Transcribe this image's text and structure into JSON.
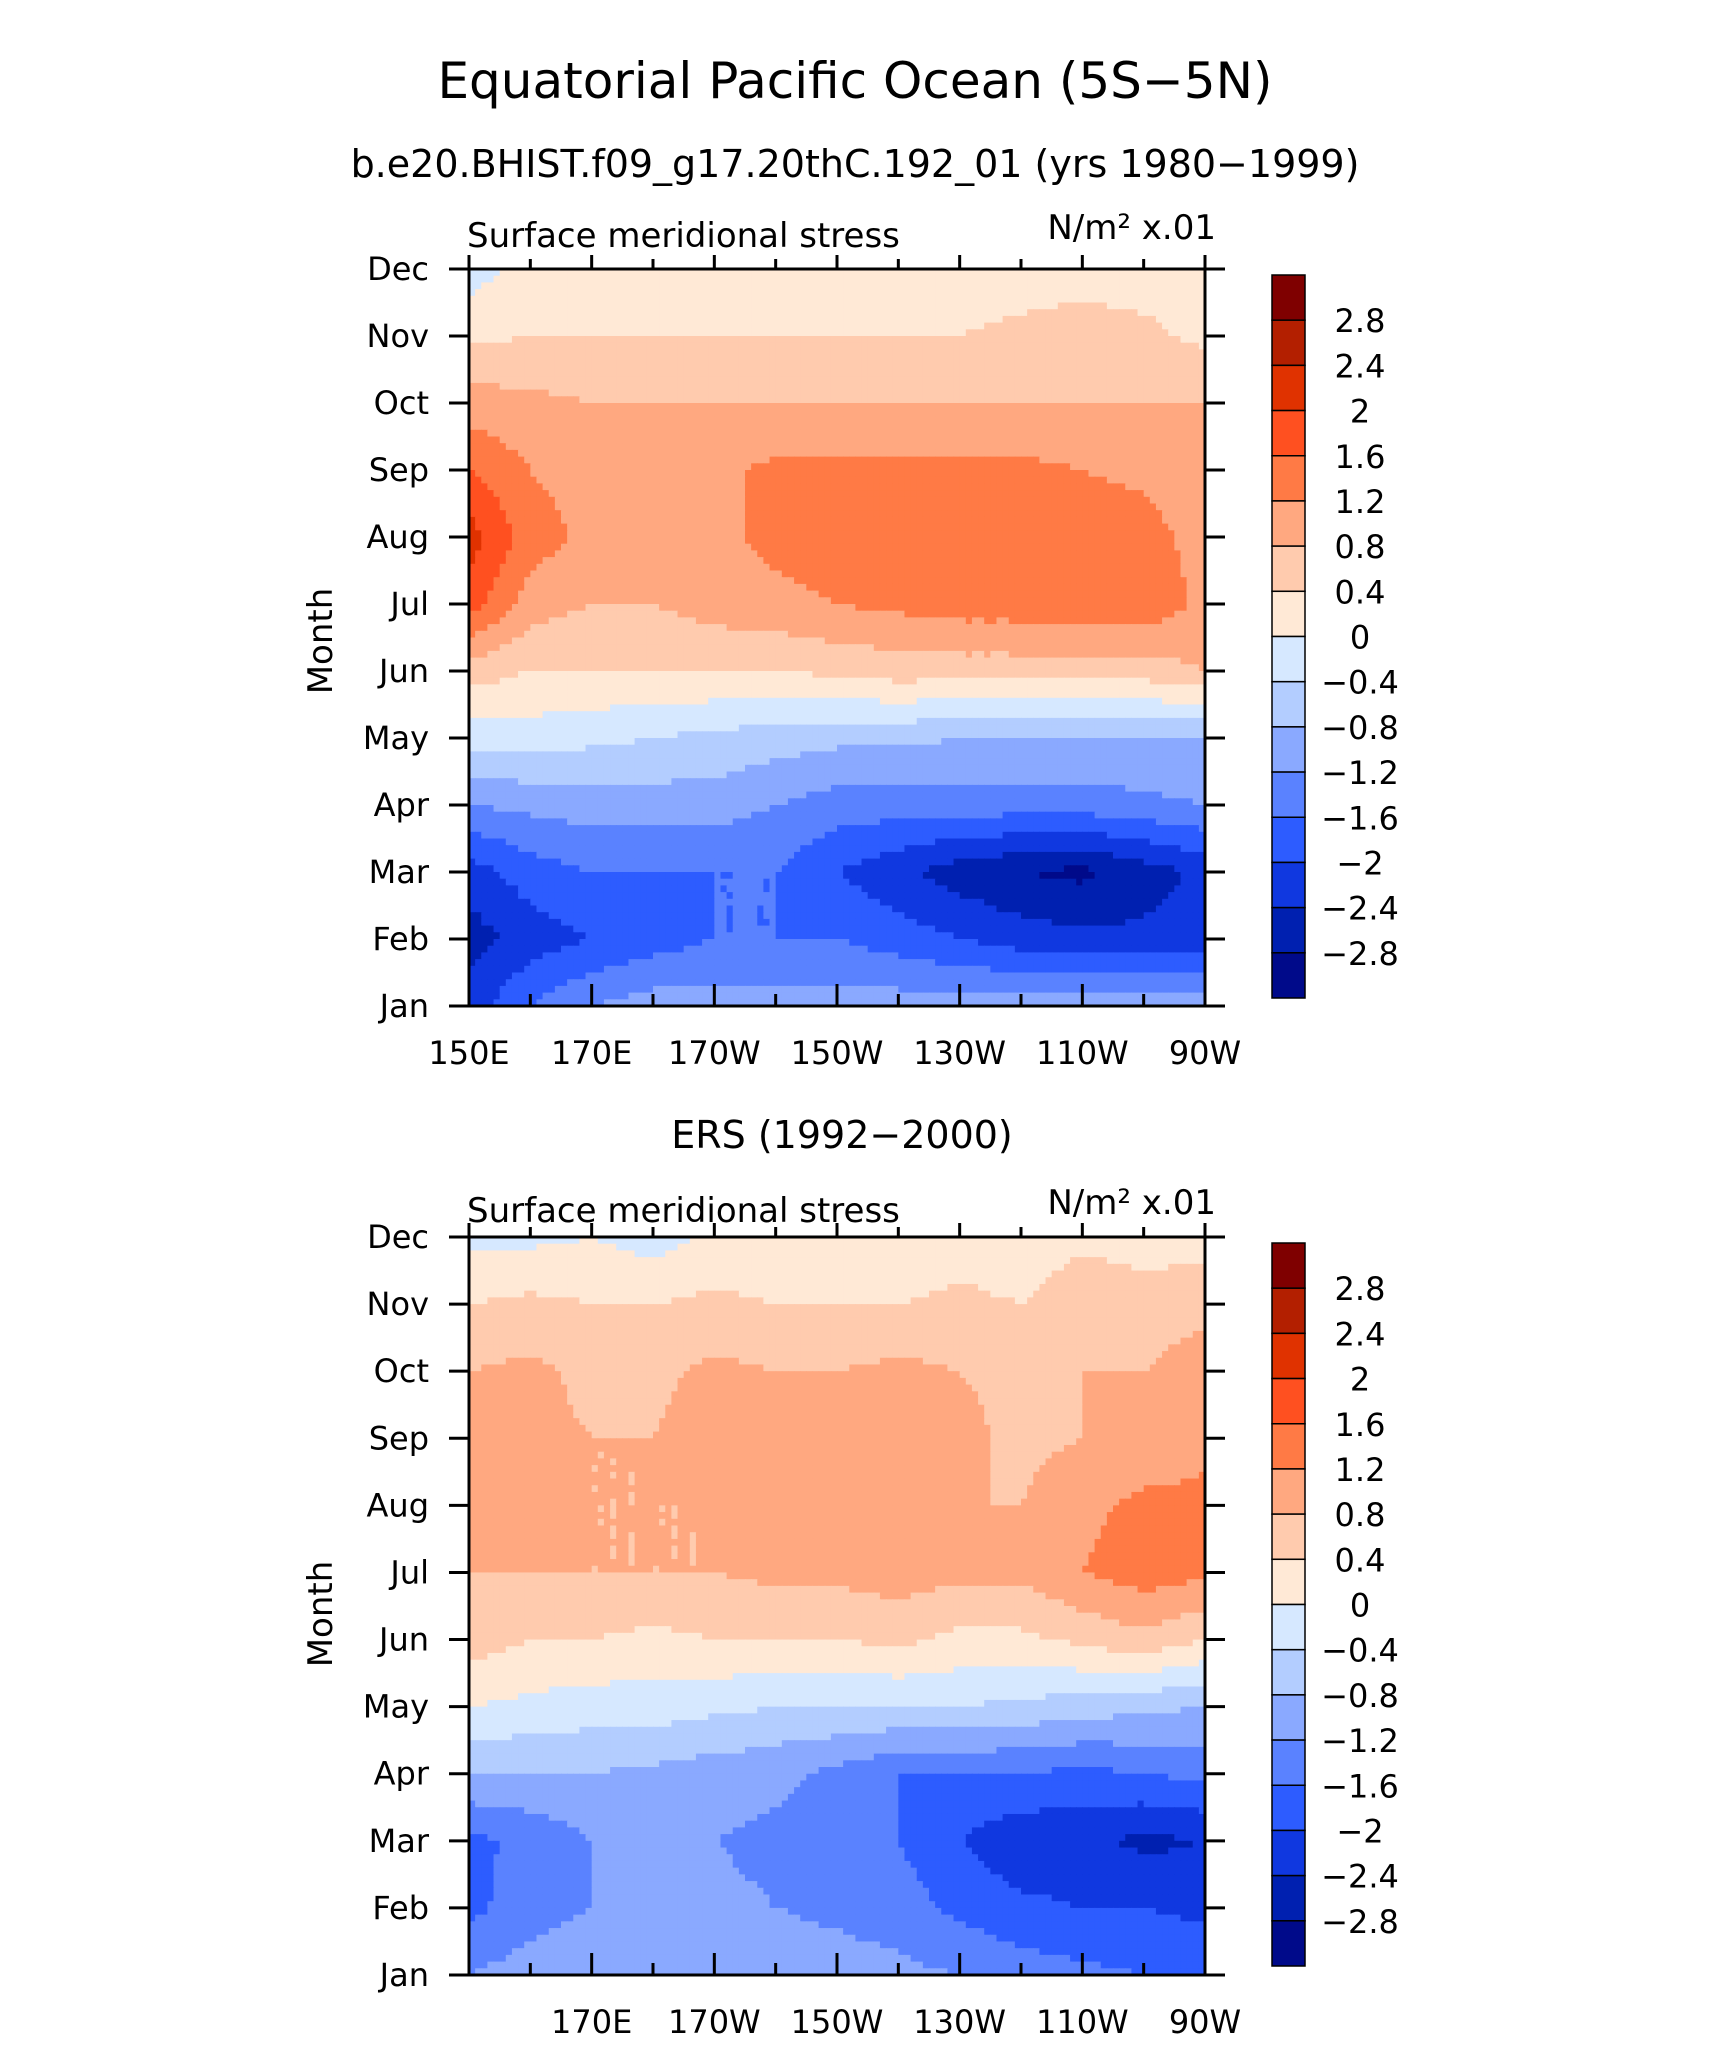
{
  "figure": {
    "title": "Equatorial Pacific Ocean (5S−5N)",
    "subtitle": "b.e20.BHIST.f09_g17.20thC.192_01 (yrs 1980−1999)"
  },
  "colorbar": {
    "levels": [
      "2.8",
      "2.4",
      "2",
      "1.6",
      "1.2",
      "0.8",
      "0.4",
      "0",
      "−0.4",
      "−0.8",
      "−1.2",
      "−1.6",
      "−2",
      "−2.4",
      "−2.8"
    ],
    "colors": [
      "#7f0000",
      "#b31f00",
      "#e03200",
      "#ff5020",
      "#ff7a45",
      "#ffa880",
      "#ffcbae",
      "#ffe9d6",
      "#d6e8ff",
      "#b3cdff",
      "#8aa9ff",
      "#5a82ff",
      "#2d5cff",
      "#1038e0",
      "#0020b0",
      "#000a8a"
    ]
  },
  "chart_data": [
    {
      "type": "heatmap",
      "title": "",
      "left_label": "Surface meridional stress",
      "units_label": "N/m² x.01",
      "ylabel": "Month",
      "x_tick_labels": [
        "150E",
        "170E",
        "170W",
        "150W",
        "130W",
        "110W",
        "90W"
      ],
      "x_ticks": [
        150,
        170,
        190,
        210,
        230,
        250,
        270
      ],
      "xlim": [
        150,
        270
      ],
      "y_tick_labels": [
        "Jan",
        "Feb",
        "Mar",
        "Apr",
        "May",
        "Jun",
        "Jul",
        "Aug",
        "Sep",
        "Oct",
        "Nov",
        "Dec"
      ],
      "x": [
        150,
        160,
        170,
        180,
        190,
        200,
        210,
        220,
        230,
        240,
        250,
        260,
        270
      ],
      "y": [
        "Jan",
        "Feb",
        "Mar",
        "Apr",
        "May",
        "Jun",
        "Jul",
        "Aug",
        "Sep",
        "Oct",
        "Nov",
        "Dec"
      ],
      "z": [
        [
          -2.2,
          -1.6,
          -1.2,
          -1.0,
          -1.0,
          -1.0,
          -1.0,
          -1.0,
          -1.0,
          -1.0,
          -1.0,
          -1.0,
          -0.9
        ],
        [
          -2.6,
          -2.2,
          -2.0,
          -1.8,
          -1.6,
          -1.6,
          -1.6,
          -1.8,
          -2.0,
          -2.2,
          -2.3,
          -2.3,
          -2.2
        ],
        [
          -2.2,
          -1.8,
          -1.6,
          -1.6,
          -1.6,
          -1.6,
          -2.0,
          -2.3,
          -2.6,
          -2.8,
          -2.9,
          -2.6,
          -2.3
        ],
        [
          -1.2,
          -1.1,
          -1.0,
          -1.0,
          -1.0,
          -1.2,
          -1.4,
          -1.4,
          -1.4,
          -1.4,
          -1.4,
          -1.3,
          -1.2
        ],
        [
          -0.2,
          -0.2,
          -0.3,
          -0.4,
          -0.5,
          -0.6,
          -0.7,
          -0.7,
          -0.8,
          -0.8,
          -0.8,
          -0.8,
          -0.8
        ],
        [
          0.6,
          0.4,
          0.4,
          0.4,
          0.4,
          0.4,
          0.5,
          0.6,
          0.6,
          0.6,
          0.6,
          0.6,
          0.8
        ],
        [
          1.8,
          1.0,
          0.8,
          0.8,
          1.0,
          1.1,
          1.2,
          1.3,
          1.4,
          1.4,
          1.5,
          1.5,
          1.1
        ],
        [
          2.2,
          1.4,
          1.1,
          1.0,
          1.1,
          1.3,
          1.4,
          1.4,
          1.4,
          1.4,
          1.4,
          1.4,
          1.0
        ],
        [
          1.6,
          1.2,
          1.0,
          1.0,
          1.1,
          1.3,
          1.3,
          1.3,
          1.3,
          1.3,
          1.2,
          1.1,
          0.8
        ],
        [
          1.0,
          0.9,
          0.8,
          0.8,
          0.8,
          0.8,
          0.8,
          0.8,
          0.8,
          0.8,
          0.8,
          0.8,
          0.8
        ],
        [
          0.3,
          0.4,
          0.4,
          0.4,
          0.4,
          0.4,
          0.4,
          0.4,
          0.4,
          0.5,
          0.6,
          0.5,
          0.3
        ],
        [
          -0.2,
          0.2,
          0.2,
          0.2,
          0.1,
          0.2,
          0.2,
          0.2,
          0.2,
          0.2,
          0.2,
          0.2,
          0.2
        ]
      ]
    },
    {
      "type": "heatmap",
      "title": "ERS (1992−2000)",
      "left_label": "Surface meridional stress",
      "units_label": "N/m² x.01",
      "ylabel": "Month",
      "x_tick_labels": [
        "170E",
        "170W",
        "150W",
        "130W",
        "110W",
        "90W"
      ],
      "x_ticks": [
        170,
        190,
        210,
        230,
        250,
        270
      ],
      "xlim": [
        150,
        270
      ],
      "y_tick_labels": [
        "Jan",
        "Feb",
        "Mar",
        "Apr",
        "May",
        "Jun",
        "Jul",
        "Aug",
        "Sep",
        "Oct",
        "Nov",
        "Dec"
      ],
      "x": [
        150,
        160,
        170,
        180,
        190,
        200,
        210,
        220,
        230,
        240,
        250,
        260,
        270
      ],
      "y": [
        "Jan",
        "Feb",
        "Mar",
        "Apr",
        "May",
        "Jun",
        "Jul",
        "Aug",
        "Sep",
        "Oct",
        "Nov",
        "Dec"
      ],
      "z": [
        [
          -1.2,
          -1.0,
          -0.8,
          -0.8,
          -0.8,
          -0.9,
          -1.0,
          -1.1,
          -1.2,
          -1.4,
          -1.5,
          -1.6,
          -1.7
        ],
        [
          -1.7,
          -1.4,
          -1.2,
          -1.0,
          -1.1,
          -1.2,
          -1.3,
          -1.4,
          -1.7,
          -1.9,
          -2.0,
          -2.0,
          -2.1
        ],
        [
          -1.7,
          -1.5,
          -1.2,
          -1.1,
          -1.2,
          -1.3,
          -1.4,
          -1.6,
          -2.0,
          -2.3,
          -2.3,
          -2.5,
          -2.4
        ],
        [
          -0.8,
          -0.8,
          -0.8,
          -0.9,
          -1.0,
          -1.1,
          -1.3,
          -1.6,
          -1.6,
          -1.6,
          -1.7,
          -1.6,
          -1.5
        ],
        [
          0.0,
          -0.1,
          -0.2,
          -0.2,
          -0.3,
          -0.4,
          -0.4,
          -0.4,
          -0.4,
          -0.5,
          -0.6,
          -0.7,
          -0.8
        ],
        [
          0.6,
          0.4,
          0.4,
          0.3,
          0.4,
          0.4,
          0.4,
          0.5,
          0.3,
          0.3,
          0.5,
          0.7,
          0.4
        ],
        [
          0.8,
          0.8,
          0.8,
          0.8,
          0.8,
          0.9,
          0.9,
          1.0,
          0.9,
          0.9,
          1.2,
          1.4,
          1.3
        ],
        [
          0.9,
          0.9,
          0.8,
          0.8,
          0.8,
          0.9,
          1.0,
          1.0,
          0.8,
          0.8,
          1.1,
          1.3,
          1.3
        ],
        [
          1.2,
          0.9,
          0.8,
          0.8,
          1.0,
          0.9,
          1.0,
          1.0,
          0.9,
          0.7,
          0.8,
          0.9,
          1.1
        ],
        [
          0.8,
          0.9,
          0.7,
          0.7,
          0.9,
          0.8,
          0.8,
          0.9,
          0.8,
          0.7,
          0.8,
          0.8,
          1.0
        ],
        [
          0.4,
          0.5,
          0.4,
          0.4,
          0.5,
          0.4,
          0.4,
          0.4,
          0.5,
          0.4,
          0.7,
          0.6,
          0.7
        ],
        [
          -0.1,
          -0.1,
          0.0,
          -0.2,
          0.1,
          0.0,
          0.1,
          0.0,
          0.2,
          0.1,
          0.3,
          0.2,
          0.2
        ]
      ]
    }
  ]
}
